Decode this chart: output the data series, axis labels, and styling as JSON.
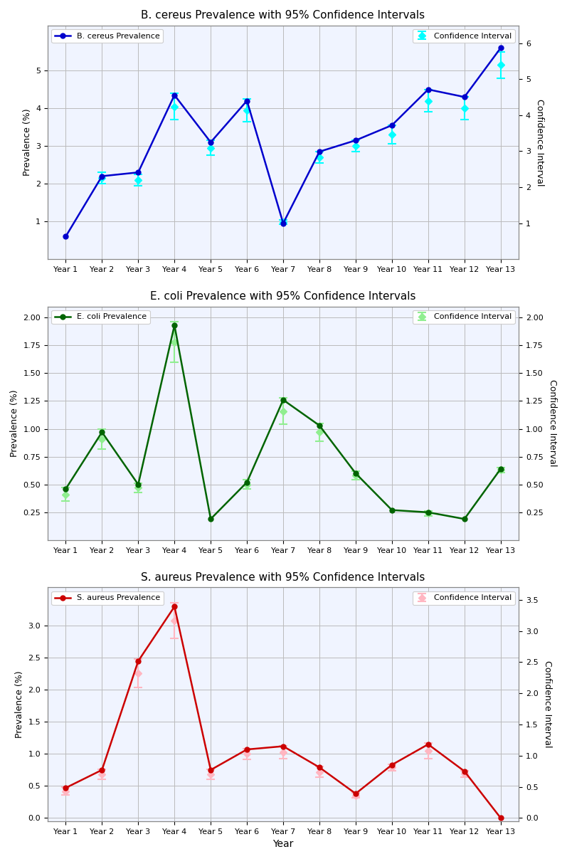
{
  "years": [
    "Year 1",
    "Year 2",
    "Year 3",
    "Year 4",
    "Year 5",
    "Year 6",
    "Year 7",
    "Year 8",
    "Year 9",
    "Year 10",
    "Year 11",
    "Year 12",
    "Year 13"
  ],
  "bcereus": {
    "title": "B. cereus Prevalence with 95% Confidence Intervals",
    "name": "B. cereus",
    "prevalence": [
      0.6,
      2.2,
      2.3,
      4.35,
      3.1,
      4.2,
      0.95,
      2.85,
      3.15,
      3.55,
      4.5,
      4.3,
      5.6
    ],
    "ci": [
      null,
      2.15,
      2.1,
      4.05,
      2.95,
      3.95,
      0.98,
      2.7,
      3.0,
      3.3,
      4.2,
      4.0,
      5.15
    ],
    "ci_err": [
      null,
      0.15,
      0.15,
      0.35,
      0.2,
      0.3,
      0.05,
      0.15,
      0.15,
      0.25,
      0.3,
      0.3,
      0.35
    ],
    "line_color": "#0000CD",
    "ci_color": "#00FFFF",
    "ylabel": "Prevalence (%)",
    "ylabel2": "Confidence Interval",
    "ylim": [
      0,
      6.2
    ],
    "ylim2": [
      0,
      6.5
    ],
    "yticks": [
      1,
      2,
      3,
      4,
      5
    ],
    "yticks2": [
      1,
      2,
      3,
      4,
      5,
      6
    ]
  },
  "ecoli": {
    "title": "E. coli Prevalence with 95% Confidence Intervals",
    "name": "E. coli",
    "prevalence": [
      0.46,
      0.97,
      0.5,
      1.93,
      0.19,
      0.52,
      1.26,
      1.03,
      0.6,
      0.27,
      0.25,
      0.19,
      0.64
    ],
    "ci": [
      0.41,
      0.91,
      0.47,
      1.78,
      null,
      0.5,
      1.16,
      0.97,
      0.58,
      null,
      0.24,
      null,
      0.63
    ],
    "ci_err": [
      0.06,
      0.09,
      0.04,
      0.18,
      null,
      0.04,
      0.12,
      0.08,
      0.04,
      null,
      0.02,
      null,
      0.02
    ],
    "line_color": "#006400",
    "ci_color": "#90EE90",
    "ylabel": "Prevalence (%)",
    "ylabel2": "Confidence Interval",
    "ylim": [
      0,
      2.1
    ],
    "ylim2": [
      0,
      2.1
    ],
    "yticks": [
      0.25,
      0.5,
      0.75,
      1.0,
      1.25,
      1.5,
      1.75,
      2.0
    ],
    "yticks2": [
      0.25,
      0.5,
      0.75,
      1.0,
      1.25,
      1.5,
      1.75,
      2.0
    ]
  },
  "saureus": {
    "title": "S. aureus Prevalence with 95% Confidence Intervals",
    "name": "S. aureus",
    "prevalence": [
      0.47,
      0.75,
      2.45,
      3.3,
      0.75,
      1.07,
      1.12,
      0.79,
      0.38,
      0.83,
      1.15,
      0.73,
      0.0
    ],
    "ci": [
      0.42,
      0.68,
      2.26,
      3.08,
      0.68,
      1.0,
      1.03,
      0.72,
      0.35,
      0.79,
      1.05,
      0.69,
      null
    ],
    "ci_err": [
      0.06,
      0.08,
      0.22,
      0.28,
      0.08,
      0.08,
      0.1,
      0.08,
      0.04,
      0.05,
      0.12,
      0.05,
      null
    ],
    "line_color": "#CC0000",
    "ci_color": "#FFB6C1",
    "ylabel": "Prevalence (%)",
    "ylabel2": "Confidence Interval",
    "ylim": [
      -0.05,
      3.6
    ],
    "ylim2": [
      -0.05,
      3.7
    ],
    "yticks": [
      0.0,
      0.5,
      1.0,
      1.5,
      2.0,
      2.5,
      3.0
    ],
    "yticks2": [
      0.0,
      0.5,
      1.0,
      1.5,
      2.0,
      2.5,
      3.0,
      3.5
    ]
  },
  "background_color": "#FFFFFF",
  "plot_bg_color": "#F0F4FF",
  "grid_color": "#BBBBBB",
  "xlabel": "Year",
  "markersize": 5
}
